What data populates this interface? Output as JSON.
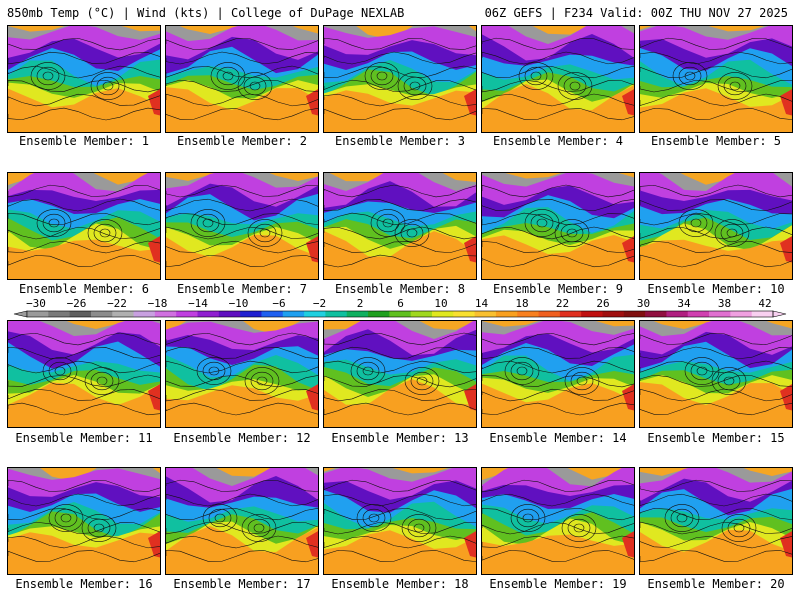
{
  "header": {
    "left": "850mb Temp (°C) | Wind (kts) | College of DuPage NEXLAB",
    "right": "06Z GEFS | F234 Valid: 00Z THU NOV 27 2025"
  },
  "panels": [
    {
      "label": "Ensemble Member: 1"
    },
    {
      "label": "Ensemble Member: 2"
    },
    {
      "label": "Ensemble Member: 3"
    },
    {
      "label": "Ensemble Member: 4"
    },
    {
      "label": "Ensemble Member: 5"
    },
    {
      "label": "Ensemble Member: 6"
    },
    {
      "label": "Ensemble Member: 7"
    },
    {
      "label": "Ensemble Member: 8"
    },
    {
      "label": "Ensemble Member: 9"
    },
    {
      "label": "Ensemble Member: 10"
    },
    {
      "label": "Ensemble Member: 11"
    },
    {
      "label": "Ensemble Member: 12"
    },
    {
      "label": "Ensemble Member: 13"
    },
    {
      "label": "Ensemble Member: 14"
    },
    {
      "label": "Ensemble Member: 15"
    },
    {
      "label": "Ensemble Member: 16"
    },
    {
      "label": "Ensemble Member: 17"
    },
    {
      "label": "Ensemble Member: 18"
    },
    {
      "label": "Ensemble Member: 19"
    },
    {
      "label": "Ensemble Member: 20"
    }
  ],
  "colorbar": {
    "labels": [
      "−30",
      "−26",
      "−22",
      "−18",
      "−14",
      "−10",
      "−6",
      "−2",
      "2",
      "6",
      "10",
      "14",
      "18",
      "22",
      "26",
      "30",
      "34",
      "38",
      "42"
    ],
    "colors": [
      "#9a9a9a",
      "#7a7a7a",
      "#5e5e5e",
      "#8c8c8c",
      "#b0b0b0",
      "#c8a0e0",
      "#d070e0",
      "#c040e0",
      "#9020d0",
      "#6010c0",
      "#2020d0",
      "#2060f0",
      "#20a0f0",
      "#20d0e0",
      "#10c0a0",
      "#10b060",
      "#20a020",
      "#60c020",
      "#a0d820",
      "#e0e820",
      "#f8e030",
      "#f8c030",
      "#f8a020",
      "#f88020",
      "#f06020",
      "#e03020",
      "#c01010",
      "#a01010",
      "#801010",
      "#901040",
      "#b02080",
      "#d040b0",
      "#e070d0",
      "#f0a0e0",
      "#f8d0f0"
    ]
  }
}
